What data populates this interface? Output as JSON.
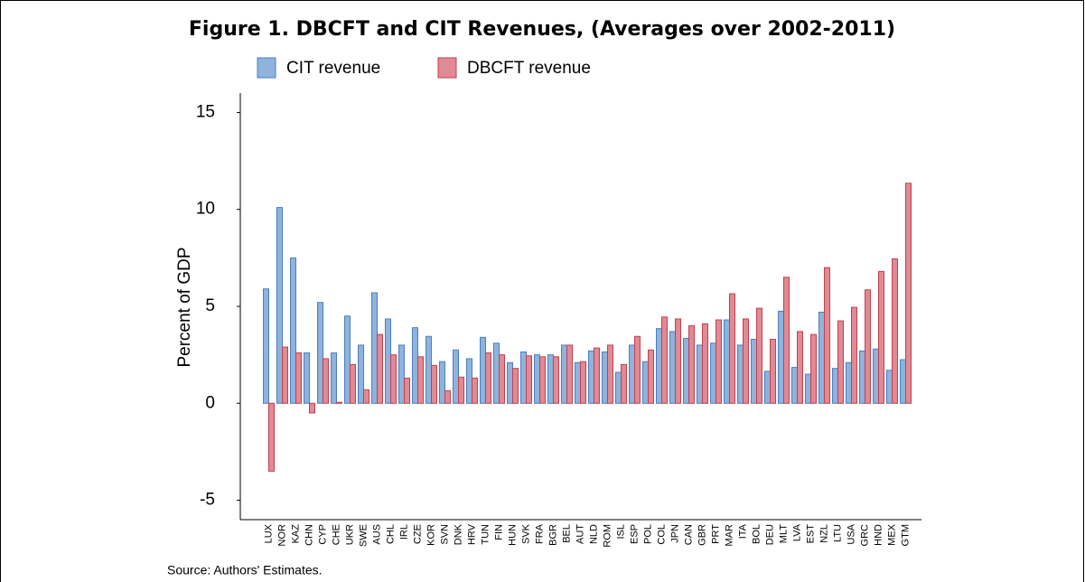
{
  "chart_data": {
    "type": "bar",
    "title": "Figure 1. DBCFT and CIT Revenues, (Averages over 2002-2011)",
    "ylabel": "Percent of GDP",
    "source": "Source: Authors' Estimates.",
    "categories": [
      "LUX",
      "NOR",
      "KAZ",
      "CHN",
      "CYP",
      "CHE",
      "UKR",
      "SWE",
      "AUS",
      "CHL",
      "IRL",
      "CZE",
      "KOR",
      "SVN",
      "DNK",
      "HRV",
      "TUN",
      "FIN",
      "HUN",
      "SVK",
      "FRA",
      "BGR",
      "BEL",
      "AUT",
      "NLD",
      "ROM",
      "ISL",
      "ESP",
      "POL",
      "COL",
      "JPN",
      "CAN",
      "GBR",
      "PRT",
      "MAR",
      "ITA",
      "BOL",
      "DEU",
      "MLT",
      "LVA",
      "EST",
      "NZL",
      "LTU",
      "USA",
      "GRC",
      "HND",
      "MEX",
      "GTM"
    ],
    "series": [
      {
        "name": "CIT revenue",
        "color": "#8fb3dc",
        "edge": "#4a7fc0",
        "values": [
          5.9,
          10.1,
          7.5,
          2.6,
          5.2,
          2.6,
          4.5,
          3.0,
          5.7,
          4.35,
          3.0,
          3.9,
          3.45,
          2.15,
          2.75,
          2.3,
          3.4,
          3.1,
          2.1,
          2.65,
          2.5,
          2.5,
          3.0,
          2.1,
          2.7,
          2.65,
          1.6,
          3.0,
          2.15,
          3.85,
          3.7,
          3.35,
          3.0,
          3.1,
          4.3,
          3.0,
          3.3,
          1.65,
          4.75,
          1.85,
          1.5,
          4.7,
          1.8,
          2.1,
          2.7,
          2.8,
          1.7,
          2.25
        ]
      },
      {
        "name": "DBCFT revenue",
        "color": "#e08a94",
        "edge": "#c0404f",
        "values": [
          -3.5,
          2.9,
          2.6,
          -0.5,
          2.3,
          0.05,
          2.0,
          0.7,
          3.55,
          2.5,
          1.3,
          2.4,
          1.95,
          0.65,
          1.35,
          1.3,
          2.6,
          2.5,
          1.8,
          2.45,
          2.4,
          2.4,
          3.0,
          2.15,
          2.85,
          3.0,
          2.0,
          3.45,
          2.75,
          4.45,
          4.35,
          4.0,
          4.1,
          4.3,
          5.65,
          4.35,
          4.9,
          3.3,
          6.5,
          3.7,
          3.55,
          7.0,
          4.25,
          4.95,
          5.85,
          6.8,
          7.45,
          11.35
        ]
      }
    ],
    "ylim": [
      -6,
      16
    ],
    "yticks": [
      -5,
      0,
      5,
      10,
      15
    ],
    "grid": false
  }
}
